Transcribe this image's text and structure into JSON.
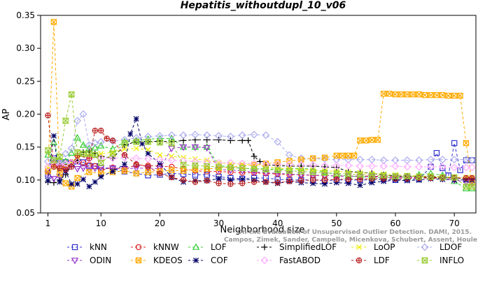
{
  "chart_data": {
    "type": "line",
    "title": "Hepatitis_withoutdupl_10_v06",
    "xlabel": "Neighborhood size",
    "ylabel": "AP",
    "xlim": [
      0,
      74
    ],
    "ylim": [
      0.05,
      0.35
    ],
    "xticks": [
      1,
      10,
      20,
      30,
      40,
      50,
      60,
      70
    ],
    "yticks": [
      "0.05",
      "0.10",
      "0.15",
      "0.20",
      "0.25",
      "0.30",
      "0.35"
    ],
    "grid": false,
    "legend_position": "bottom",
    "citation": [
      "Campos, Zimek, Sander, Campello, Micenkova, Schubert, Assent, Houle",
      "On the Evaluation of Unsupervised Outlier Detection. DAMI, 2015."
    ],
    "series": [
      {
        "name": "kNN",
        "color": "#3333cc",
        "marker": "square",
        "x": [
          1,
          2,
          3,
          4,
          5,
          6,
          7,
          8,
          9,
          10,
          12,
          14,
          16,
          18,
          20,
          22,
          24,
          26,
          28,
          30,
          32,
          34,
          36,
          38,
          40,
          42,
          44,
          46,
          48,
          50,
          52,
          54,
          56,
          58,
          60,
          62,
          64,
          66,
          67,
          68,
          69,
          70,
          71,
          72,
          73
        ],
        "values": [
          0.108,
          0.133,
          0.125,
          0.127,
          0.125,
          0.128,
          0.127,
          0.121,
          0.121,
          0.118,
          0.117,
          0.113,
          0.11,
          0.107,
          0.108,
          0.11,
          0.109,
          0.108,
          0.108,
          0.105,
          0.103,
          0.102,
          0.103,
          0.103,
          0.101,
          0.1,
          0.1,
          0.1,
          0.099,
          0.1,
          0.1,
          0.1,
          0.1,
          0.101,
          0.1,
          0.101,
          0.101,
          0.12,
          0.141,
          0.118,
          0.107,
          0.156,
          0.115,
          0.13,
          0.13
        ]
      },
      {
        "name": "kNNW",
        "color": "#dd2222",
        "marker": "circle",
        "x": [
          1,
          2,
          3,
          4,
          5,
          6,
          7,
          8,
          9,
          10,
          12,
          14,
          16,
          18,
          20,
          22,
          24,
          26,
          28,
          30,
          32,
          34,
          36,
          38,
          40,
          42,
          44,
          46,
          48,
          50,
          52,
          54,
          56,
          58,
          60,
          62,
          64,
          66,
          68,
          70,
          72,
          73
        ],
        "values": [
          0.114,
          0.126,
          0.12,
          0.12,
          0.127,
          0.129,
          0.126,
          0.123,
          0.121,
          0.115,
          0.119,
          0.116,
          0.123,
          0.122,
          0.121,
          0.12,
          0.117,
          0.114,
          0.113,
          0.113,
          0.112,
          0.111,
          0.111,
          0.11,
          0.109,
          0.108,
          0.108,
          0.107,
          0.107,
          0.106,
          0.106,
          0.106,
          0.106,
          0.105,
          0.105,
          0.104,
          0.104,
          0.104,
          0.103,
          0.103,
          0.103,
          0.102
        ]
      },
      {
        "name": "LOF",
        "color": "#33cc33",
        "marker": "triangle",
        "x": [
          1,
          2,
          3,
          4,
          5,
          6,
          7,
          8,
          9,
          10,
          12,
          14,
          16,
          18,
          20,
          22,
          24,
          26,
          28,
          30,
          32,
          34,
          36,
          38,
          40,
          42,
          44,
          46,
          48,
          50,
          52,
          54,
          56,
          58,
          60,
          62,
          64,
          66,
          68,
          70,
          72,
          73
        ],
        "values": [
          0.138,
          0.157,
          0.13,
          0.128,
          0.141,
          0.164,
          0.153,
          0.148,
          0.149,
          0.152,
          0.147,
          0.158,
          0.16,
          0.162,
          0.163,
          0.163,
          0.15,
          0.15,
          0.15,
          0.122,
          0.12,
          0.118,
          0.117,
          0.117,
          0.116,
          0.117,
          0.118,
          0.116,
          0.112,
          0.108,
          0.106,
          0.105,
          0.104,
          0.104,
          0.104,
          0.104,
          0.108,
          0.11,
          0.107,
          0.098,
          0.087,
          0.087
        ]
      },
      {
        "name": "SimplifiedLOF",
        "color": "#000000",
        "marker": "plus",
        "x": [
          1,
          2,
          3,
          4,
          5,
          6,
          7,
          8,
          9,
          10,
          12,
          14,
          16,
          18,
          20,
          22,
          24,
          26,
          28,
          30,
          32,
          34,
          35,
          36,
          37,
          38,
          40,
          42,
          44,
          46,
          48,
          50,
          52,
          54,
          56,
          58,
          60,
          62,
          64,
          66,
          68,
          70,
          72,
          73
        ],
        "values": [
          0.097,
          0.096,
          0.1,
          0.108,
          0.122,
          0.13,
          0.142,
          0.143,
          0.14,
          0.136,
          0.133,
          0.153,
          0.158,
          0.158,
          0.159,
          0.158,
          0.16,
          0.161,
          0.161,
          0.161,
          0.16,
          0.16,
          0.16,
          0.136,
          0.128,
          0.123,
          0.122,
          0.121,
          0.121,
          0.121,
          0.12,
          0.119,
          0.113,
          0.112,
          0.11,
          0.108,
          0.106,
          0.106,
          0.105,
          0.105,
          0.104,
          0.103,
          0.102,
          0.102
        ]
      },
      {
        "name": "LoOP",
        "color": "#eeee00",
        "marker": "cross",
        "x": [
          1,
          2,
          3,
          4,
          5,
          6,
          8,
          10,
          12,
          14,
          16,
          18,
          20,
          22,
          24,
          26,
          28,
          30,
          32,
          34,
          36,
          38,
          40,
          42,
          44,
          46,
          48,
          50,
          52,
          54,
          56,
          58,
          60,
          62,
          64,
          66,
          68,
          70,
          72,
          73
        ],
        "values": [
          0.118,
          0.12,
          0.118,
          0.12,
          0.127,
          0.135,
          0.136,
          0.14,
          0.142,
          0.147,
          0.148,
          0.146,
          0.138,
          0.136,
          0.134,
          0.132,
          0.13,
          0.126,
          0.125,
          0.124,
          0.124,
          0.12,
          0.118,
          0.117,
          0.116,
          0.115,
          0.114,
          0.113,
          0.112,
          0.111,
          0.11,
          0.109,
          0.108,
          0.107,
          0.106,
          0.106,
          0.105,
          0.104,
          0.104,
          0.104
        ]
      },
      {
        "name": "LDOF",
        "color": "#aaaaee",
        "marker": "diamond",
        "x": [
          1,
          2,
          3,
          4,
          5,
          6,
          7,
          8,
          9,
          10,
          12,
          14,
          16,
          18,
          20,
          22,
          24,
          26,
          28,
          30,
          32,
          34,
          36,
          38,
          40,
          42,
          44,
          46,
          48,
          50,
          52,
          54,
          56,
          58,
          60,
          62,
          64,
          66,
          68,
          70,
          72,
          73
        ],
        "values": [
          0.128,
          0.132,
          0.127,
          0.14,
          0.148,
          0.19,
          0.2,
          0.153,
          0.156,
          0.158,
          0.159,
          0.161,
          0.164,
          0.166,
          0.167,
          0.168,
          0.168,
          0.169,
          0.168,
          0.167,
          0.166,
          0.168,
          0.169,
          0.168,
          0.158,
          0.138,
          0.133,
          0.132,
          0.132,
          0.131,
          0.131,
          0.131,
          0.131,
          0.13,
          0.13,
          0.13,
          0.13,
          0.131,
          0.131,
          0.131,
          0.131,
          0.13
        ]
      },
      {
        "name": "ODIN",
        "color": "#9933cc",
        "marker": "triangle-down",
        "x": [
          1,
          2,
          3,
          4,
          5,
          6,
          7,
          8,
          9,
          10,
          12,
          14,
          16,
          18,
          20,
          22,
          24,
          26,
          28,
          30,
          32,
          34,
          36,
          38,
          40,
          42,
          44,
          46,
          48,
          50,
          52,
          54,
          56,
          58,
          60,
          62,
          64,
          66,
          68,
          70,
          72,
          73
        ],
        "values": [
          0.11,
          0.102,
          0.105,
          0.114,
          0.125,
          0.117,
          0.118,
          0.116,
          0.118,
          0.119,
          0.118,
          0.117,
          0.118,
          0.118,
          0.117,
          0.148,
          0.15,
          0.15,
          0.149,
          0.116,
          0.115,
          0.114,
          0.112,
          0.111,
          0.11,
          0.109,
          0.108,
          0.107,
          0.107,
          0.106,
          0.106,
          0.105,
          0.105,
          0.104,
          0.104,
          0.104,
          0.103,
          0.103,
          0.102,
          0.1,
          0.097,
          0.097
        ]
      },
      {
        "name": "KDEOS",
        "color": "#ffaa00",
        "marker": "square-x",
        "x": [
          1,
          2,
          3,
          4,
          5,
          6,
          8,
          10,
          12,
          14,
          16,
          18,
          20,
          22,
          24,
          26,
          28,
          30,
          32,
          34,
          36,
          38,
          40,
          42,
          44,
          46,
          48,
          50,
          51,
          52,
          53,
          54,
          55,
          56,
          57,
          58,
          59,
          60,
          61,
          62,
          63,
          64,
          65,
          66,
          67,
          68,
          69,
          70,
          71,
          72,
          73
        ],
        "values": [
          0.113,
          0.34,
          0.11,
          0.095,
          0.09,
          0.103,
          0.112,
          0.11,
          0.112,
          0.114,
          0.11,
          0.112,
          0.113,
          0.115,
          0.114,
          0.116,
          0.117,
          0.118,
          0.12,
          0.121,
          0.123,
          0.125,
          0.127,
          0.129,
          0.131,
          0.133,
          0.134,
          0.137,
          0.137,
          0.137,
          0.137,
          0.16,
          0.16,
          0.161,
          0.161,
          0.231,
          0.231,
          0.23,
          0.23,
          0.23,
          0.23,
          0.23,
          0.229,
          0.229,
          0.229,
          0.229,
          0.228,
          0.228,
          0.228,
          0.156,
          0.095
        ]
      },
      {
        "name": "COF",
        "color": "#000066",
        "marker": "asterisk",
        "x": [
          1,
          2,
          3,
          4,
          5,
          6,
          7,
          8,
          9,
          10,
          12,
          14,
          15,
          16,
          17,
          18,
          20,
          22,
          24,
          26,
          28,
          30,
          32,
          34,
          36,
          38,
          40,
          42,
          44,
          46,
          48,
          50,
          52,
          54,
          56,
          58,
          60,
          62,
          64,
          66,
          68,
          70,
          72,
          73
        ],
        "values": [
          0.099,
          0.167,
          0.097,
          0.113,
          0.094,
          0.094,
          0.101,
          0.09,
          0.097,
          0.105,
          0.113,
          0.124,
          0.17,
          0.193,
          0.155,
          0.14,
          0.125,
          0.104,
          0.097,
          0.099,
          0.099,
          0.102,
          0.1,
          0.101,
          0.1,
          0.097,
          0.095,
          0.098,
          0.096,
          0.095,
          0.094,
          0.096,
          0.095,
          0.092,
          0.096,
          0.098,
          0.1,
          0.099,
          0.1,
          0.102,
          0.101,
          0.1,
          0.1,
          0.1
        ]
      },
      {
        "name": "FastABOD",
        "color": "#ffaaff",
        "marker": "diamond",
        "x": [
          1,
          2,
          3,
          4,
          5,
          6,
          8,
          10,
          12,
          14,
          16,
          18,
          20,
          22,
          24,
          26,
          28,
          30,
          32,
          34,
          36,
          38,
          40,
          42,
          44,
          46,
          48,
          50,
          52,
          54,
          56,
          58,
          60,
          62,
          64,
          66,
          68,
          70,
          72,
          73
        ],
        "values": [
          0.12,
          0.123,
          0.123,
          0.125,
          0.126,
          0.128,
          0.132,
          0.133,
          0.133,
          0.134,
          0.133,
          0.132,
          0.131,
          0.13,
          0.129,
          0.128,
          0.127,
          0.126,
          0.126,
          0.125,
          0.125,
          0.124,
          0.124,
          0.124,
          0.123,
          0.123,
          0.122,
          0.122,
          0.122,
          0.121,
          0.121,
          0.121,
          0.121,
          0.12,
          0.12,
          0.12,
          0.12,
          0.119,
          0.119,
          0.119
        ]
      },
      {
        "name": "LDF",
        "color": "#bb2222",
        "marker": "circle-plus",
        "x": [
          1,
          2,
          3,
          4,
          5,
          6,
          8,
          9,
          10,
          11,
          12,
          14,
          16,
          18,
          20,
          22,
          24,
          26,
          28,
          30,
          32,
          34,
          36,
          38,
          40,
          42,
          44,
          46,
          48,
          50,
          52,
          54,
          56,
          58,
          60,
          62,
          64,
          66,
          68,
          70,
          72,
          73
        ],
        "values": [
          0.198,
          0.12,
          0.118,
          0.116,
          0.12,
          0.137,
          0.133,
          0.175,
          0.175,
          0.163,
          0.16,
          0.138,
          0.124,
          0.12,
          0.11,
          0.104,
          0.1,
          0.097,
          0.099,
          0.095,
          0.094,
          0.095,
          0.097,
          0.097,
          0.096,
          0.098,
          0.099,
          0.1,
          0.1,
          0.101,
          0.101,
          0.101,
          0.102,
          0.102,
          0.102,
          0.102,
          0.103,
          0.103,
          0.103,
          0.103,
          0.103,
          0.103
        ]
      },
      {
        "name": "INFLO",
        "color": "#99cc33",
        "marker": "hourglass",
        "x": [
          1,
          2,
          3,
          4,
          5,
          6,
          7,
          8,
          9,
          10,
          12,
          14,
          16,
          18,
          20,
          22,
          24,
          26,
          28,
          30,
          32,
          34,
          36,
          38,
          40,
          42,
          44,
          46,
          48,
          50,
          52,
          54,
          56,
          58,
          60,
          62,
          64,
          66,
          68,
          70,
          72,
          73
        ],
        "values": [
          0.145,
          0.13,
          0.135,
          0.19,
          0.23,
          0.142,
          0.14,
          0.14,
          0.138,
          0.126,
          0.14,
          0.156,
          0.158,
          0.158,
          0.157,
          0.156,
          0.123,
          0.122,
          0.121,
          0.12,
          0.119,
          0.118,
          0.117,
          0.116,
          0.115,
          0.114,
          0.113,
          0.112,
          0.111,
          0.11,
          0.109,
          0.108,
          0.107,
          0.107,
          0.106,
          0.106,
          0.105,
          0.105,
          0.104,
          0.104,
          0.09,
          0.09
        ]
      }
    ]
  }
}
